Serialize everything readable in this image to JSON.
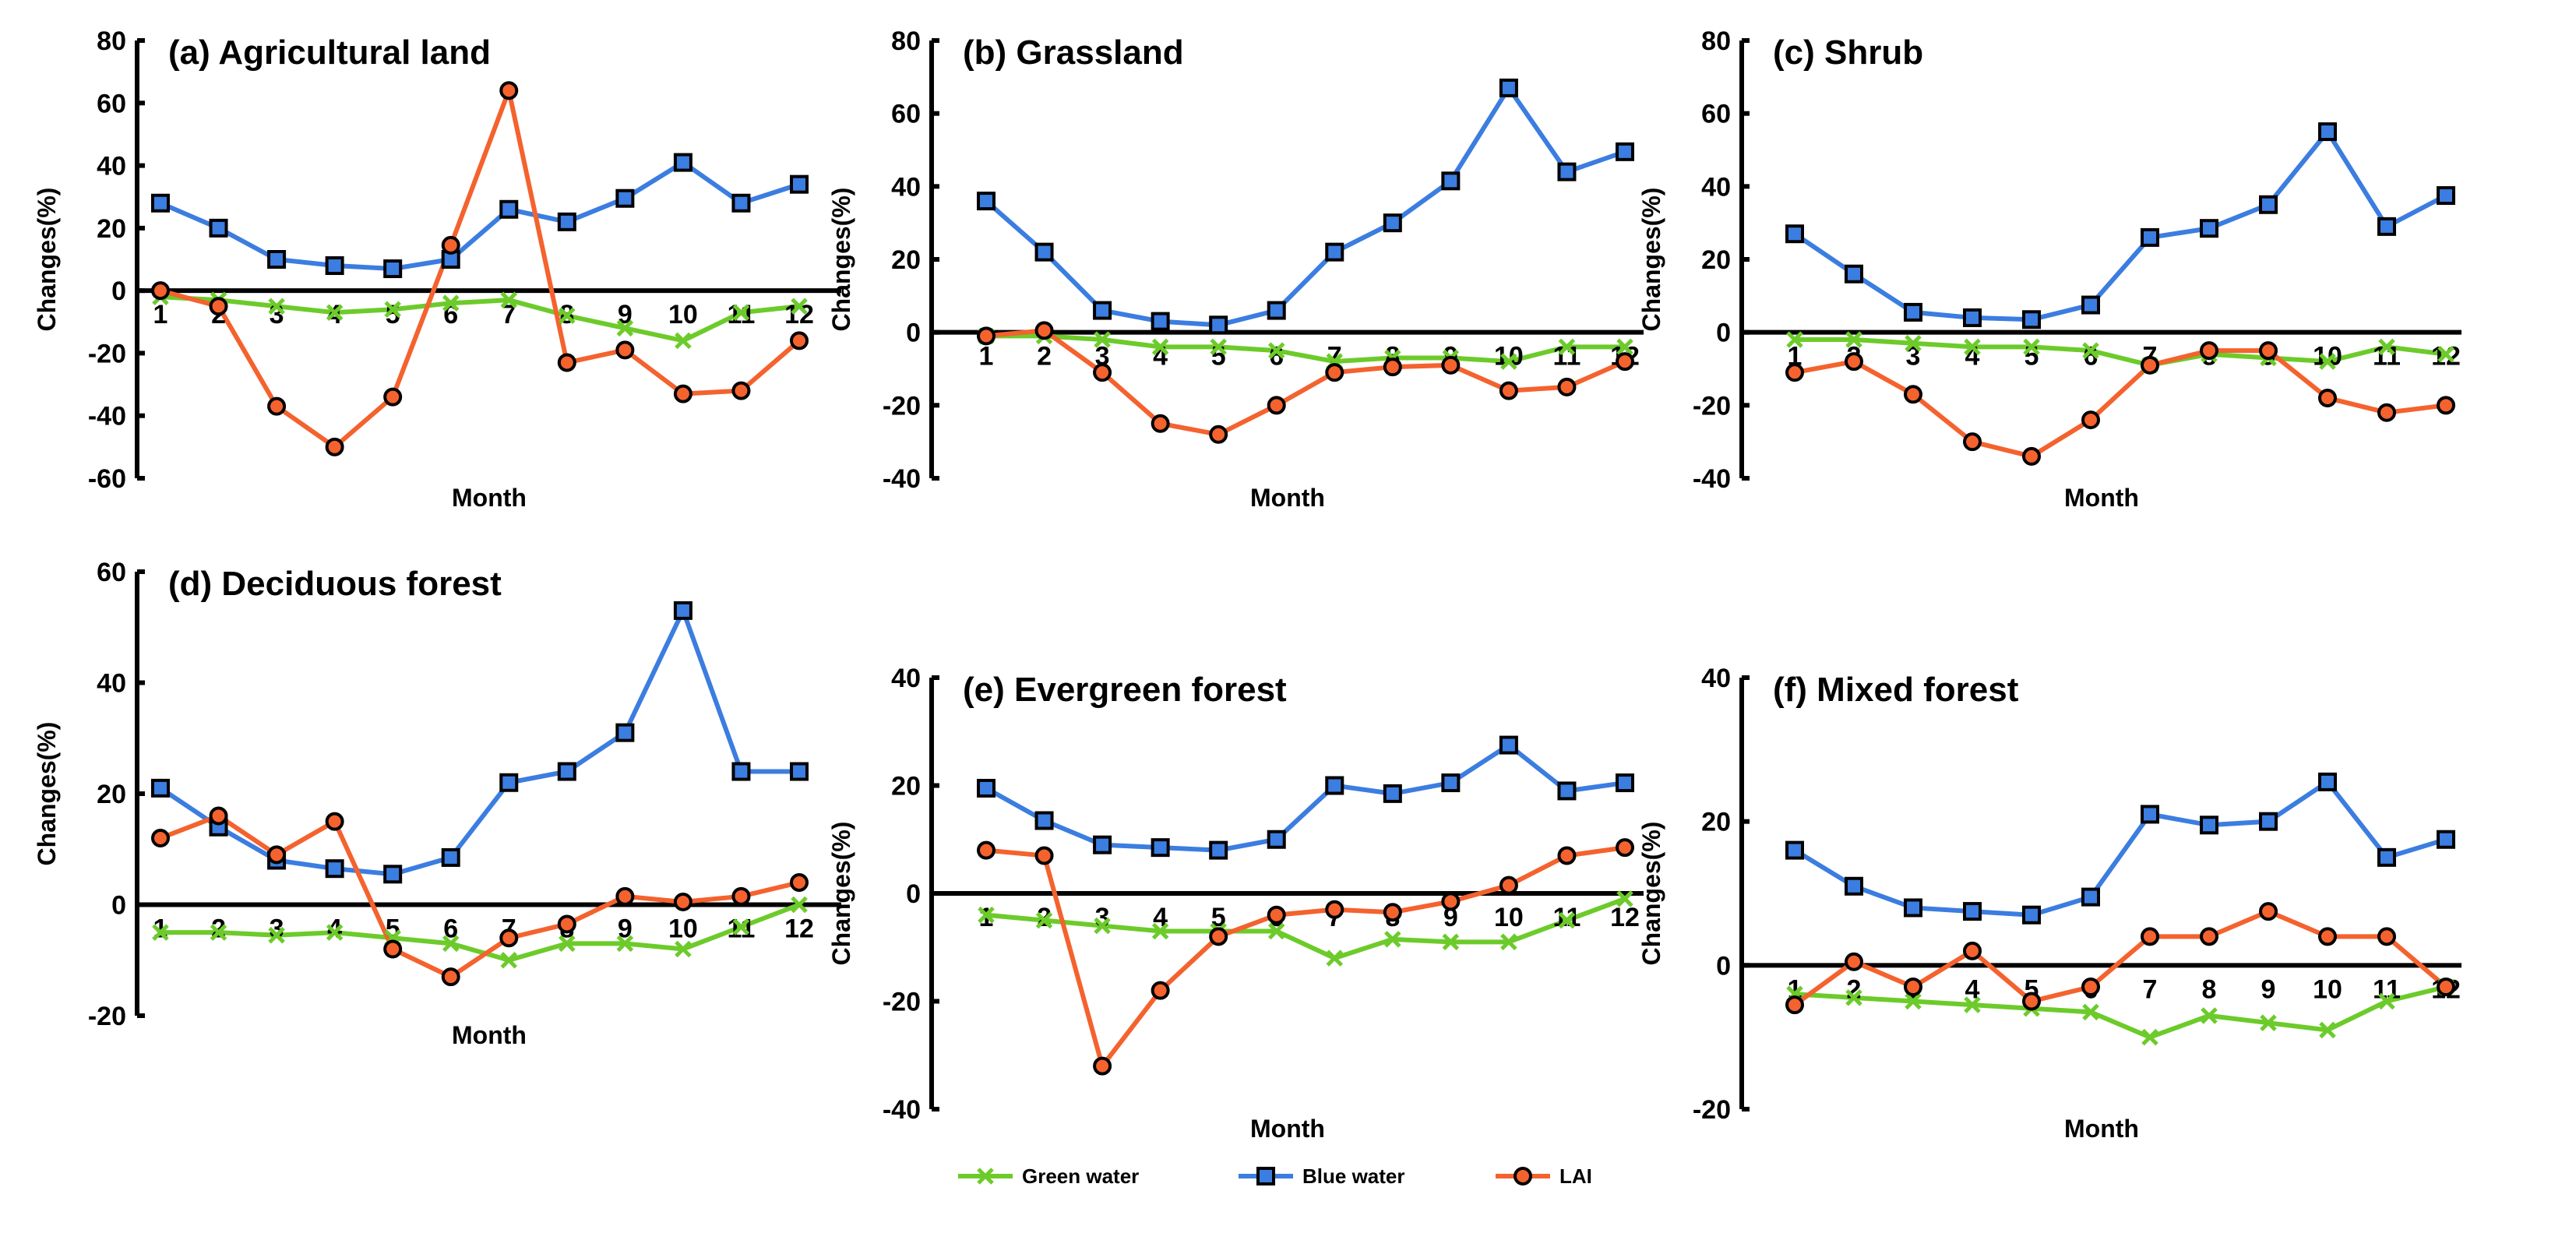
{
  "chart_data": [
    {
      "type": "line",
      "title": "(a) Agricultural land",
      "xlabel": "Month",
      "ylabel": "Changes(%)",
      "ylim": [
        -60,
        80
      ],
      "yticks": [
        -60,
        -40,
        -20,
        0,
        20,
        40,
        60,
        80
      ],
      "categories": [
        "1",
        "2",
        "3",
        "4",
        "5",
        "6",
        "7",
        "8",
        "9",
        "10",
        "11",
        "12"
      ],
      "series": [
        {
          "name": "Green water",
          "values": [
            -2,
            -3,
            -5,
            -7,
            -6,
            -4,
            -3,
            -8,
            -12,
            -16,
            -7,
            -5
          ]
        },
        {
          "name": "Blue water",
          "values": [
            28,
            20,
            10,
            8,
            7,
            10,
            26,
            22,
            29.5,
            41,
            28,
            34
          ]
        },
        {
          "name": "LAI",
          "values": [
            0,
            -5,
            -37,
            -50,
            -34,
            14.5,
            64,
            -23,
            -19,
            -33,
            -32,
            -16
          ]
        }
      ]
    },
    {
      "type": "line",
      "title": "(b) Grassland",
      "xlabel": "Month",
      "ylabel": "Changes(%)",
      "ylim": [
        -40,
        80
      ],
      "yticks": [
        -40,
        -20,
        0,
        20,
        40,
        60,
        80
      ],
      "categories": [
        "1",
        "2",
        "3",
        "4",
        "5",
        "6",
        "7",
        "8",
        "9",
        "10",
        "11",
        "12"
      ],
      "series": [
        {
          "name": "Green water",
          "values": [
            -1,
            -1,
            -2,
            -4,
            -4,
            -5,
            -8,
            -7,
            -7,
            -8,
            -4,
            -4
          ]
        },
        {
          "name": "Blue water",
          "values": [
            36,
            22,
            6,
            3,
            2,
            6,
            22,
            30,
            41.5,
            67,
            44,
            49.5
          ]
        },
        {
          "name": "LAI",
          "values": [
            -1,
            0.5,
            -11,
            -25,
            -28,
            -20,
            -11,
            -9.5,
            -9,
            -16,
            -15,
            -8
          ]
        }
      ]
    },
    {
      "type": "line",
      "title": "(c) Shrub",
      "xlabel": "Month",
      "ylabel": "Changes(%)",
      "ylim": [
        -40,
        80
      ],
      "yticks": [
        -40,
        -20,
        0,
        20,
        40,
        60,
        80
      ],
      "categories": [
        "1",
        "2",
        "3",
        "4",
        "5",
        "6",
        "7",
        "8",
        "9",
        "10",
        "11",
        "12"
      ],
      "series": [
        {
          "name": "Green water",
          "values": [
            -2,
            -2,
            -3,
            -4,
            -4,
            -5,
            -9,
            -6,
            -7,
            -8,
            -4,
            -6
          ]
        },
        {
          "name": "Blue water",
          "values": [
            27,
            16,
            5.5,
            4,
            3.5,
            7.5,
            26,
            28.5,
            35,
            55,
            29,
            37.5
          ]
        },
        {
          "name": "LAI",
          "values": [
            -11,
            -8,
            -17,
            -30,
            -34,
            -24,
            -9,
            -5,
            -5,
            -18,
            -22,
            -20
          ]
        }
      ]
    },
    {
      "type": "line",
      "title": "(d) Deciduous forest",
      "xlabel": "Month",
      "ylabel": "Changes(%)",
      "ylim": [
        -20,
        60
      ],
      "yticks": [
        -20,
        0,
        20,
        40,
        60
      ],
      "categories": [
        "1",
        "2",
        "3",
        "4",
        "5",
        "6",
        "7",
        "8",
        "9",
        "10",
        "11",
        "12"
      ],
      "series": [
        {
          "name": "Green water",
          "values": [
            -5,
            -5,
            -5.5,
            -5,
            -6,
            -7,
            -10,
            -7,
            -7,
            -8,
            -4,
            0
          ]
        },
        {
          "name": "Blue water",
          "values": [
            21,
            14,
            8,
            6.5,
            5.5,
            8.5,
            22,
            24,
            31,
            53,
            24,
            24
          ]
        },
        {
          "name": "LAI",
          "values": [
            12,
            16,
            9,
            15,
            -8,
            -13,
            -6,
            -3.5,
            1.5,
            0.5,
            1.5,
            4
          ]
        }
      ]
    },
    {
      "type": "line",
      "title": "(e) Evergreen forest",
      "xlabel": "Month",
      "ylabel": "Changes(%)",
      "ylim": [
        -40,
        40
      ],
      "yticks": [
        -40,
        -20,
        0,
        20,
        40
      ],
      "categories": [
        "1",
        "2",
        "3",
        "4",
        "5",
        "6",
        "7",
        "8",
        "9",
        "10",
        "11",
        "12"
      ],
      "series": [
        {
          "name": "Green water",
          "values": [
            -4,
            -5,
            -6,
            -7,
            -7,
            -7,
            -12,
            -8.5,
            -9,
            -9,
            -5,
            -1
          ]
        },
        {
          "name": "Blue water",
          "values": [
            19.5,
            13.5,
            9,
            8.5,
            8,
            10,
            20,
            18.5,
            20.5,
            27.5,
            19,
            20.5
          ]
        },
        {
          "name": "LAI",
          "values": [
            8,
            7,
            -32,
            -18,
            -8,
            -4,
            -3,
            -3.5,
            -1.5,
            1.5,
            7,
            8.5
          ]
        }
      ]
    },
    {
      "type": "line",
      "title": "(f) Mixed forest",
      "xlabel": "Month",
      "ylabel": "Changes(%)",
      "ylim": [
        -20,
        40
      ],
      "yticks": [
        -20,
        0,
        20,
        40
      ],
      "categories": [
        "1",
        "2",
        "3",
        "4",
        "5",
        "6",
        "7",
        "8",
        "9",
        "10",
        "11",
        "12"
      ],
      "series": [
        {
          "name": "Green water",
          "values": [
            -4,
            -4.5,
            -5,
            -5.5,
            -6,
            -6.5,
            -10,
            -7,
            -8,
            -9,
            -5,
            -3
          ]
        },
        {
          "name": "Blue water",
          "values": [
            16,
            11,
            8,
            7.5,
            7,
            9.5,
            21,
            19.5,
            20,
            25.5,
            15,
            17.5
          ]
        },
        {
          "name": "LAI",
          "values": [
            -5.5,
            0.5,
            -3,
            2,
            -5,
            -3,
            4,
            4,
            7.5,
            4,
            4,
            -3
          ]
        }
      ]
    }
  ],
  "legend": {
    "placement": "bottom",
    "items": [
      "Green water",
      "Blue water",
      "LAI"
    ]
  },
  "colors": {
    "Green water": "#6ccb2a",
    "Blue water": "#3b7de0",
    "LAI": "#f4622e",
    "marker_edge": "#000000"
  },
  "markers": {
    "Green water": "x",
    "Blue water": "square",
    "LAI": "circle"
  }
}
